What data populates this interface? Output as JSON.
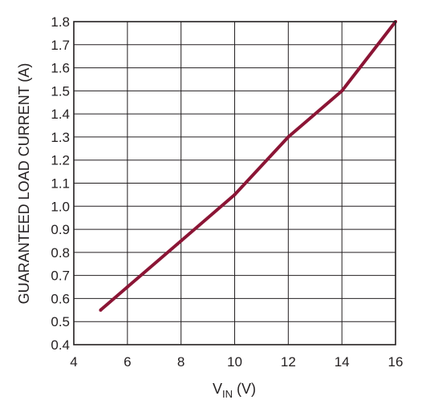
{
  "chart_data": {
    "type": "line",
    "title": "",
    "xlabel": {
      "main": "V",
      "sub": "IN",
      "suffix": " (V)"
    },
    "ylabel": "GUARANTEED LOAD CURRENT (A)",
    "xlim": [
      4,
      16
    ],
    "ylim": [
      0.4,
      1.8
    ],
    "x_ticks": [
      4,
      6,
      8,
      10,
      12,
      14,
      16
    ],
    "y_ticks": [
      0.4,
      0.5,
      0.6,
      0.7,
      0.8,
      0.9,
      1.0,
      1.1,
      1.2,
      1.3,
      1.4,
      1.5,
      1.6,
      1.7,
      1.8
    ],
    "x_tick_labels": [
      "4",
      "6",
      "8",
      "10",
      "12",
      "14",
      "16"
    ],
    "y_tick_labels": [
      "0.4",
      "0.5",
      "0.6",
      "0.7",
      "0.8",
      "0.9",
      "1.0",
      "1.1",
      "1.2",
      "1.3",
      "1.4",
      "1.5",
      "1.6",
      "1.7",
      "1.8"
    ],
    "grid": true,
    "legend": "none",
    "series": [
      {
        "color": "#8b1535",
        "x": [
          5,
          6,
          8,
          10,
          12,
          14,
          16
        ],
        "y": [
          0.55,
          0.65,
          0.85,
          1.05,
          1.3,
          1.5,
          1.8
        ]
      }
    ]
  }
}
